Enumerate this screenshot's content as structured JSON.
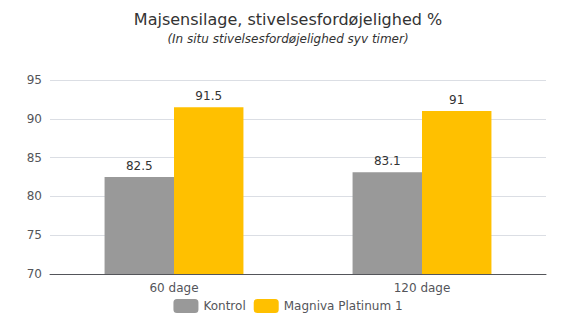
{
  "chart_data": {
    "type": "bar",
    "title": "Majsensilage, stivelsesfordøjelighed %",
    "subtitle": "(In situ stivelsesfordøjelighed syv timer)",
    "categories": [
      "60 dage",
      "120 dage"
    ],
    "series": [
      {
        "name": "Kontrol",
        "color": "#999999",
        "values": [
          82.5,
          83.1
        ]
      },
      {
        "name": "Magniva Platinum 1",
        "color": "#FFC000",
        "values": [
          91.5,
          91.0
        ]
      }
    ],
    "ylim": [
      70,
      95
    ],
    "yticks": [
      70,
      75,
      80,
      85,
      90,
      95
    ],
    "grid": true,
    "legend": "bottom",
    "data_labels": true
  }
}
